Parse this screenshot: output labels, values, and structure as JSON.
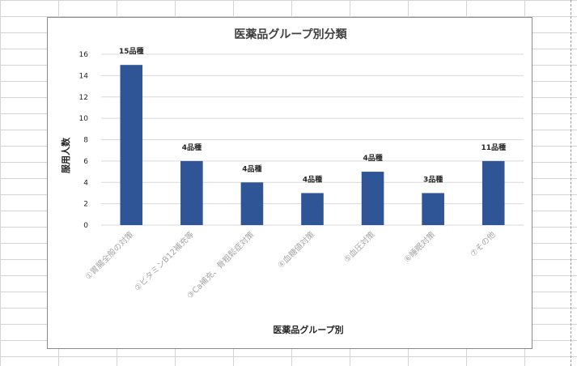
{
  "chart_data": {
    "type": "bar",
    "title": "医薬品グループ別分類",
    "xlabel": "医薬品グループ別",
    "ylabel": "服用人数",
    "categories": [
      "①胃腸全般の対策",
      "②ビタミンB12補充等",
      "③Ca補充、骨粗鬆症対策",
      "④血糖値対策",
      "⑤血圧対策",
      "⑥睡眠対策",
      "⑦その他"
    ],
    "values": [
      15,
      6,
      4,
      3,
      5,
      3,
      6
    ],
    "data_labels": [
      "15品種",
      "4品種",
      "4品種",
      "4品種",
      "4品種",
      "3品種",
      "11品種"
    ],
    "ylim": [
      0,
      16
    ],
    "yticks": [
      "0",
      "2",
      "4",
      "6",
      "8",
      "10",
      "12",
      "14",
      "16"
    ],
    "grid": true,
    "legend": "none",
    "bar_color": "#2f5597"
  }
}
